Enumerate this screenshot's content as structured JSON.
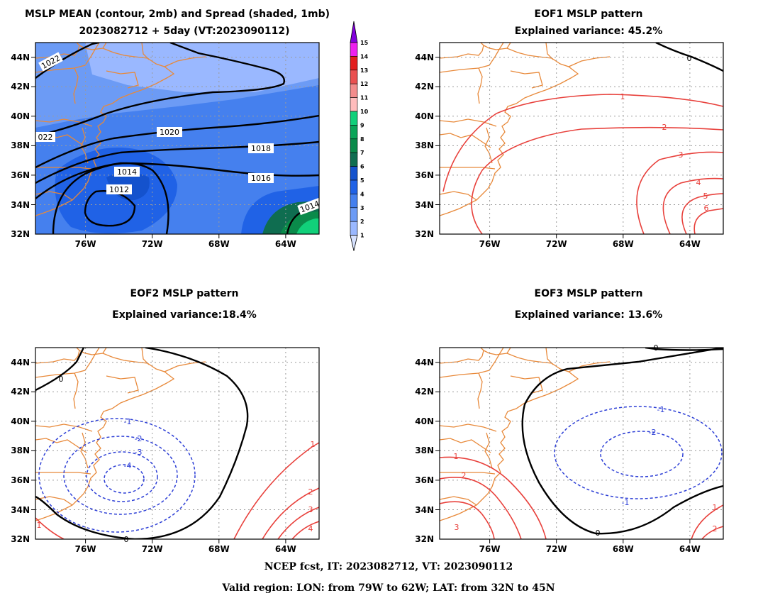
{
  "colors": {
    "land_outline": "#e8893a",
    "positive_contour": "#e8413c",
    "negative_contour": "#2d3fd6",
    "zero_contour": "#000000",
    "spread_scale": [
      "#d7e2ff",
      "#9ab8ff",
      "#6c9bf5",
      "#4580ee",
      "#2062e6",
      "#1452cd",
      "#0f6d50",
      "#0a8a4a",
      "#0aa558",
      "#11d07a",
      "#ffbcbc",
      "#f38c8c",
      "#ea5050",
      "#e31d1d",
      "#ee20ee",
      "#8200dc"
    ]
  },
  "panels": [
    {
      "id": "mean",
      "title_line1": "MSLP MEAN (contour, 2mb) and Spread (shaded, 1mb)",
      "title_line2": "2023082712 + 5day (VT:2023090112)",
      "contour_labels": [
        "1022",
        "022",
        "1020",
        "1018",
        "1016",
        "1014",
        "1012",
        "1014"
      ]
    },
    {
      "id": "eof1",
      "title_line1": "EOF1 MSLP pattern",
      "title_line2": "Explained variance: 45.2%",
      "contour_labels": [
        "0",
        "1",
        "2",
        "3",
        "4",
        "5",
        "6"
      ]
    },
    {
      "id": "eof2",
      "title_line1": "EOF2 MSLP pattern",
      "title_line2": "Explained variance:18.4%",
      "contour_labels": [
        "0",
        "0",
        "-1",
        "-2",
        "-3",
        "-4",
        "1",
        "1",
        "2",
        "3",
        "4"
      ]
    },
    {
      "id": "eof3",
      "title_line1": "EOF3 MSLP pattern",
      "title_line2": "Explained variance: 13.6%",
      "contour_labels": [
        "0",
        "0",
        "-1",
        "-2",
        "-1",
        "1",
        "2",
        "3",
        "1",
        "2"
      ]
    }
  ],
  "axes": {
    "lat_labels": [
      "44N",
      "42N",
      "40N",
      "38N",
      "36N",
      "34N",
      "32N"
    ],
    "lon_labels": [
      "76W",
      "72W",
      "68W",
      "64W"
    ]
  },
  "colorbar": {
    "labels": [
      "15",
      "14",
      "13",
      "12",
      "11",
      "10",
      "9",
      "8",
      "7",
      "6",
      "5",
      "4",
      "3",
      "2",
      "1"
    ]
  },
  "footer": {
    "line1": "NCEP fcst, IT: 2023082712, VT: 2023090112",
    "line2": "Valid region: LON: from 79W to 62W; LAT: from 32N to 45N"
  }
}
